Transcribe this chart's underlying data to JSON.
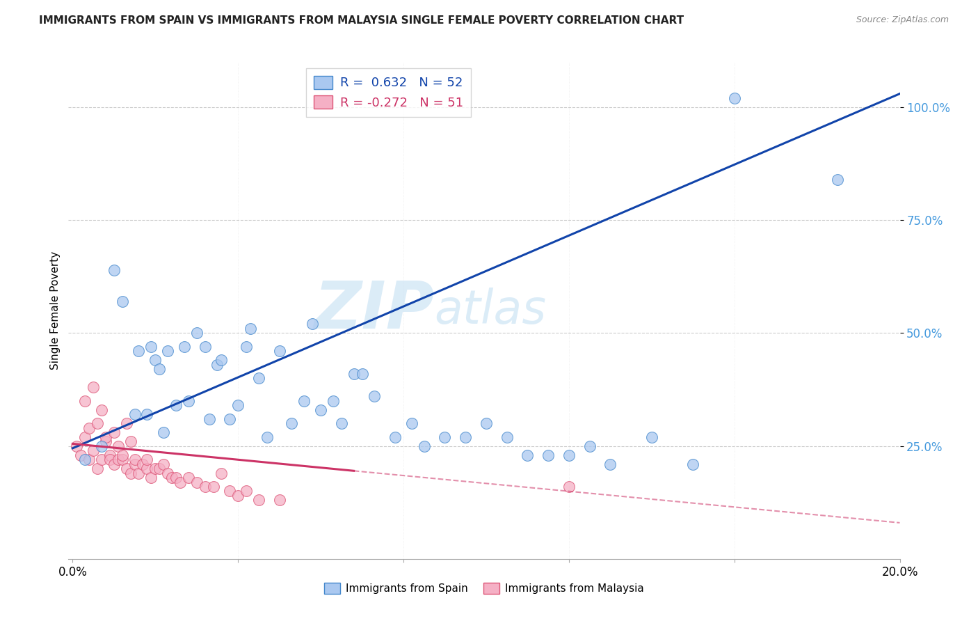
{
  "title": "IMMIGRANTS FROM SPAIN VS IMMIGRANTS FROM MALAYSIA SINGLE FEMALE POVERTY CORRELATION CHART",
  "source": "Source: ZipAtlas.com",
  "ylabel": "Single Female Poverty",
  "xlim": [
    0.0,
    0.2
  ],
  "ylim": [
    0.0,
    1.1
  ],
  "spain_R": 0.632,
  "spain_N": 52,
  "malaysia_R": -0.272,
  "malaysia_N": 51,
  "spain_color": "#aac8f0",
  "spain_edge_color": "#4488cc",
  "malaysia_color": "#f5b0c5",
  "malaysia_edge_color": "#dd5577",
  "spain_line_color": "#1144aa",
  "malaysia_line_color": "#cc3366",
  "watermark_zip": "ZIP",
  "watermark_atlas": "atlas",
  "spain_scatter_x": [
    0.003,
    0.007,
    0.01,
    0.012,
    0.015,
    0.016,
    0.018,
    0.019,
    0.02,
    0.021,
    0.022,
    0.023,
    0.025,
    0.027,
    0.028,
    0.03,
    0.032,
    0.033,
    0.035,
    0.036,
    0.038,
    0.04,
    0.042,
    0.043,
    0.045,
    0.047,
    0.05,
    0.053,
    0.056,
    0.058,
    0.06,
    0.063,
    0.065,
    0.068,
    0.07,
    0.073,
    0.078,
    0.082,
    0.085,
    0.09,
    0.095,
    0.1,
    0.105,
    0.11,
    0.115,
    0.12,
    0.125,
    0.13,
    0.14,
    0.15,
    0.16,
    0.185
  ],
  "spain_scatter_y": [
    0.22,
    0.25,
    0.64,
    0.57,
    0.32,
    0.46,
    0.32,
    0.47,
    0.44,
    0.42,
    0.28,
    0.46,
    0.34,
    0.47,
    0.35,
    0.5,
    0.47,
    0.31,
    0.43,
    0.44,
    0.31,
    0.34,
    0.47,
    0.51,
    0.4,
    0.27,
    0.46,
    0.3,
    0.35,
    0.52,
    0.33,
    0.35,
    0.3,
    0.41,
    0.41,
    0.36,
    0.27,
    0.3,
    0.25,
    0.27,
    0.27,
    0.3,
    0.27,
    0.23,
    0.23,
    0.23,
    0.25,
    0.21,
    0.27,
    0.21,
    1.02,
    0.84
  ],
  "malaysia_scatter_x": [
    0.001,
    0.002,
    0.003,
    0.003,
    0.004,
    0.004,
    0.005,
    0.005,
    0.006,
    0.006,
    0.007,
    0.007,
    0.008,
    0.008,
    0.009,
    0.009,
    0.01,
    0.01,
    0.011,
    0.011,
    0.012,
    0.012,
    0.013,
    0.013,
    0.014,
    0.014,
    0.015,
    0.015,
    0.016,
    0.017,
    0.018,
    0.018,
    0.019,
    0.02,
    0.021,
    0.022,
    0.023,
    0.024,
    0.025,
    0.026,
    0.028,
    0.03,
    0.032,
    0.034,
    0.036,
    0.038,
    0.04,
    0.042,
    0.045,
    0.05,
    0.12
  ],
  "malaysia_scatter_y": [
    0.25,
    0.23,
    0.27,
    0.35,
    0.22,
    0.29,
    0.24,
    0.38,
    0.2,
    0.3,
    0.22,
    0.33,
    0.26,
    0.27,
    0.23,
    0.22,
    0.28,
    0.21,
    0.22,
    0.25,
    0.22,
    0.23,
    0.2,
    0.3,
    0.19,
    0.26,
    0.21,
    0.22,
    0.19,
    0.21,
    0.2,
    0.22,
    0.18,
    0.2,
    0.2,
    0.21,
    0.19,
    0.18,
    0.18,
    0.17,
    0.18,
    0.17,
    0.16,
    0.16,
    0.19,
    0.15,
    0.14,
    0.15,
    0.13,
    0.13,
    0.16
  ]
}
